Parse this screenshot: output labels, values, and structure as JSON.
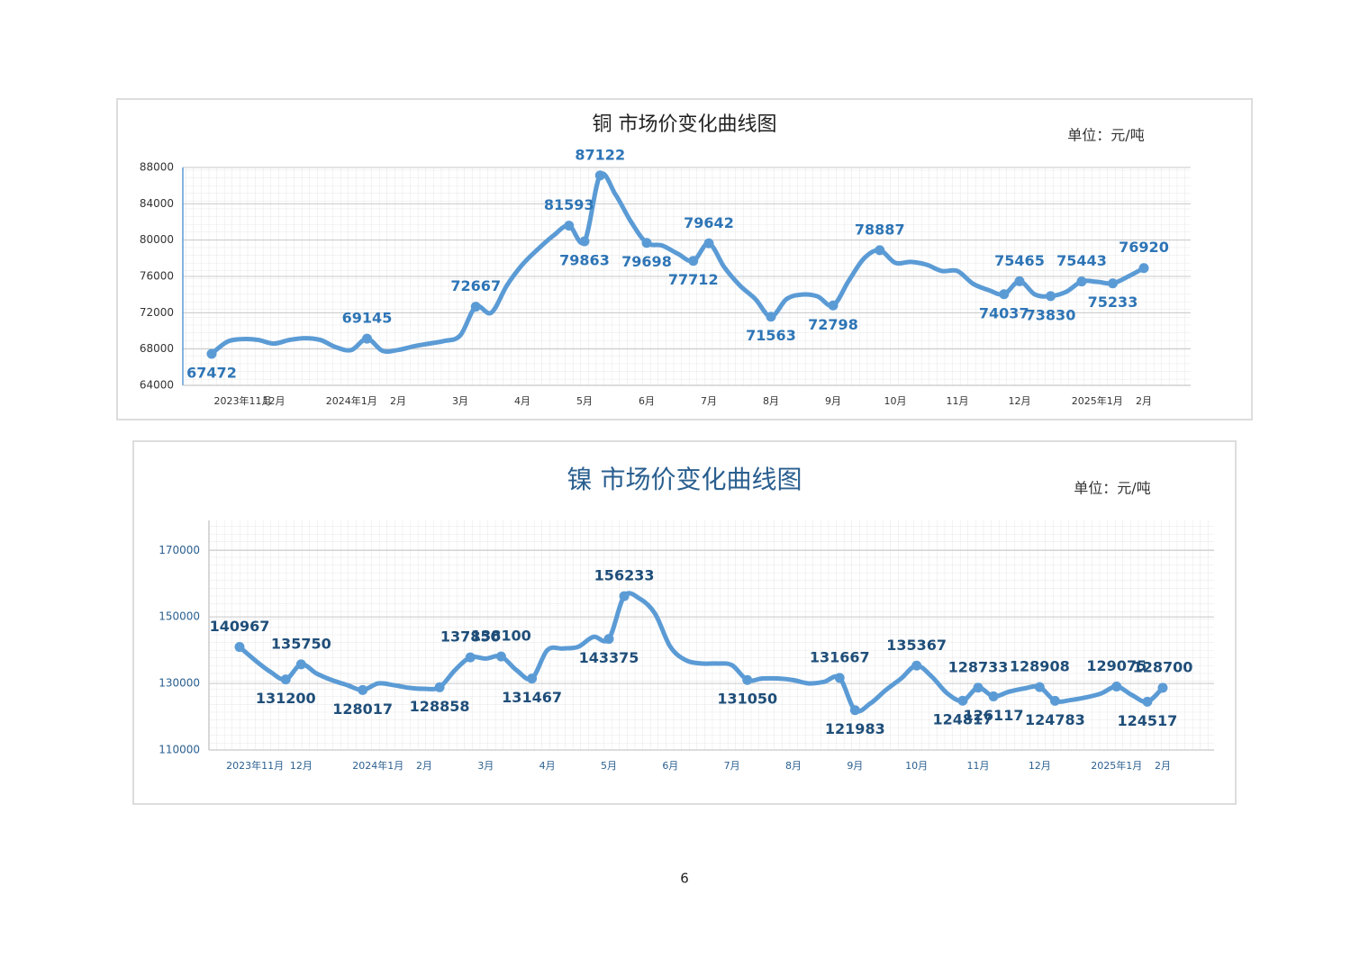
{
  "chart_data": [
    {
      "type": "line",
      "title": "铜  市场价变化曲线图",
      "unit": "单位：元/吨",
      "categories": [
        null,
        null,
        "2023年11月",
        null,
        "12月",
        null,
        null,
        null,
        null,
        "2024年1月",
        null,
        null,
        "2月",
        null,
        null,
        null,
        "3月",
        null,
        null,
        null,
        "4月",
        null,
        null,
        null,
        "5月",
        null,
        null,
        null,
        "6月",
        null,
        null,
        null,
        "7月",
        null,
        null,
        null,
        "8月",
        null,
        null,
        null,
        "9月",
        null,
        null,
        null,
        "10月",
        null,
        null,
        null,
        "11月",
        null,
        null,
        null,
        "12月",
        null,
        null,
        null,
        null,
        "2025年1月",
        null,
        null,
        "2月"
      ],
      "series": [
        {
          "color": "#5b9bd5",
          "values": [
            67472,
            68800,
            69100,
            69000,
            68600,
            69000,
            69200,
            69000,
            68200,
            67900,
            69145,
            67800,
            67900,
            68300,
            68600,
            68900,
            69500,
            72667,
            72000,
            75000,
            77300,
            79000,
            80500,
            81593,
            79863,
            87122,
            85000,
            82000,
            79698,
            79400,
            78500,
            77712,
            79642,
            77000,
            75000,
            73500,
            71563,
            73500,
            74000,
            73800,
            72798,
            75500,
            78000,
            78887,
            77500,
            77600,
            77300,
            76600,
            76600,
            75200,
            74500,
            74037,
            75465,
            74000,
            73830,
            74300,
            75443,
            75400,
            75233,
            76000,
            76920
          ],
          "value_labels": [
            "67472",
            null,
            null,
            null,
            null,
            null,
            null,
            null,
            null,
            null,
            "69145",
            null,
            null,
            null,
            null,
            null,
            null,
            "72667",
            null,
            null,
            null,
            null,
            null,
            "81593",
            "79863",
            "87122",
            null,
            null,
            "79698",
            null,
            null,
            "77712",
            "79642",
            null,
            null,
            null,
            "71563",
            null,
            null,
            null,
            "72798",
            null,
            null,
            "78887",
            null,
            null,
            null,
            null,
            null,
            null,
            null,
            "74037",
            "75465",
            null,
            "73830",
            null,
            "75443",
            null,
            "75233",
            null,
            "76920"
          ]
        }
      ],
      "ylim": [
        64000,
        88000
      ],
      "yticks": [
        64000,
        68000,
        72000,
        76000,
        80000,
        84000,
        88000
      ],
      "grid": true
    },
    {
      "type": "line",
      "title": "镍  市场价变化曲线图",
      "unit": "单位：元/吨",
      "categories": [
        null,
        "2023年11月",
        null,
        null,
        "12月",
        null,
        null,
        null,
        null,
        "2024年1月",
        null,
        null,
        "2月",
        null,
        null,
        null,
        "3月",
        null,
        null,
        null,
        "4月",
        null,
        null,
        null,
        "5月",
        null,
        null,
        null,
        "6月",
        null,
        null,
        null,
        "7月",
        null,
        null,
        null,
        "8月",
        null,
        null,
        null,
        "9月",
        null,
        null,
        null,
        "10月",
        null,
        null,
        null,
        "11月",
        null,
        null,
        null,
        "12月",
        null,
        null,
        null,
        null,
        "2025年1月",
        null,
        null,
        "2月"
      ],
      "series": [
        {
          "color": "#5b9bd5",
          "values": [
            140967,
            137000,
            133500,
            131200,
            135750,
            133000,
            131000,
            129500,
            128017,
            130000,
            129500,
            128700,
            128400,
            128858,
            134000,
            137850,
            137500,
            138100,
            134000,
            131467,
            140000,
            140500,
            141000,
            144000,
            143375,
            156233,
            155500,
            151000,
            141000,
            137000,
            136000,
            136000,
            135500,
            131050,
            131500,
            131500,
            131000,
            130000,
            130500,
            131667,
            121983,
            124000,
            128000,
            131500,
            135367,
            132000,
            127000,
            124817,
            128733,
            126117,
            127500,
            128500,
            128908,
            124783,
            125000,
            125800,
            127000,
            129075,
            126500,
            124517,
            128700
          ],
          "value_labels": [
            "140967",
            null,
            null,
            "131200",
            "135750",
            null,
            null,
            null,
            "128017",
            null,
            null,
            null,
            null,
            "128858",
            null,
            "137850",
            null,
            "138100",
            null,
            "131467",
            null,
            null,
            null,
            null,
            "143375",
            "156233",
            null,
            null,
            null,
            null,
            null,
            null,
            null,
            "131050",
            null,
            null,
            null,
            null,
            null,
            "131667",
            "121983",
            null,
            null,
            null,
            "135367",
            null,
            null,
            "124817",
            "128733",
            "126117",
            null,
            null,
            "128908",
            "124783",
            null,
            null,
            null,
            "129075",
            null,
            "124517",
            "128700"
          ]
        }
      ],
      "ylim": [
        110000,
        179000
      ],
      "yticks": [
        110000,
        130000,
        150000,
        170000
      ],
      "grid": true
    }
  ],
  "page_number": "6"
}
